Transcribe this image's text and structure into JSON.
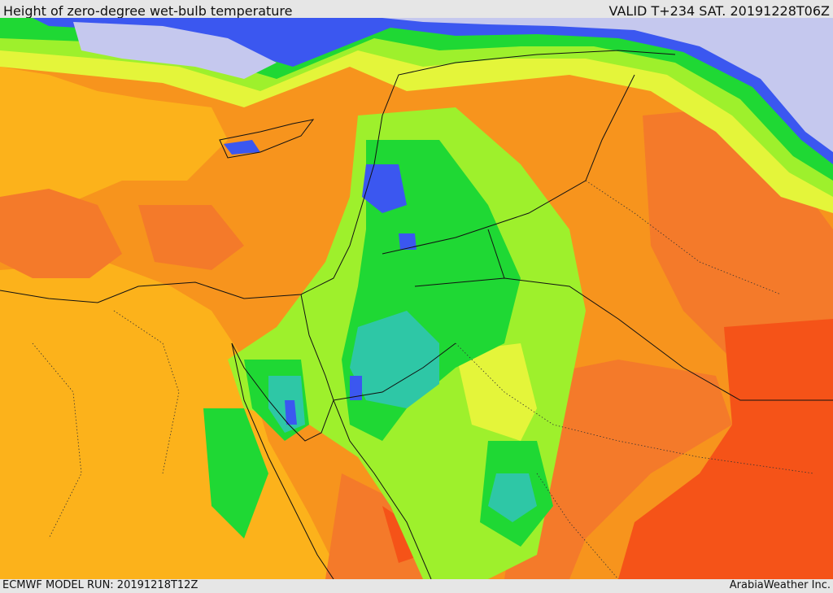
{
  "header": {
    "title": "Height of zero-degree wet-bulb temperature",
    "valid_time": "VALID T+234 SAT. 20191228T06Z"
  },
  "footer": {
    "model_run": "ECMWF MODEL RUN: 20191218T12Z",
    "credit": "ArabiaWeather Inc."
  },
  "map": {
    "palette": {
      "very_low": "#c5c8ee",
      "low_blue": "#3b57f0",
      "teal": "#2ec7a6",
      "green": "#1fd834",
      "light_green": "#9ef02c",
      "yellow": "#e4f53a",
      "orange_light": "#fcb21b",
      "orange": "#f7941d",
      "orange_dark": "#f47a2a",
      "red": "#f55318"
    }
  }
}
